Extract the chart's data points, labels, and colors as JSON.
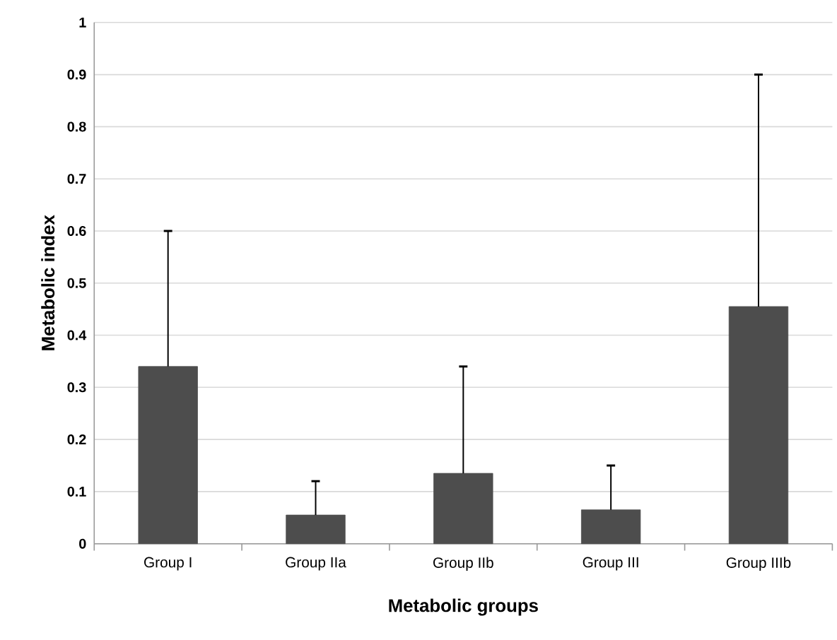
{
  "chart_data": {
    "type": "bar",
    "xlabel": "Metabolic groups",
    "ylabel": "Metabolic index",
    "categories": [
      "Group I",
      "Group IIa",
      "Group IIb",
      "Group III",
      "Group IIIb"
    ],
    "values": [
      0.34,
      0.055,
      0.135,
      0.065,
      0.455
    ],
    "errors": [
      [
        0.34,
        0.6
      ],
      [
        0.055,
        0.12
      ],
      [
        0.135,
        0.34
      ],
      [
        0.065,
        0.15
      ],
      [
        0.455,
        0.9
      ]
    ],
    "color": "#4d4d4d",
    "ylim": [
      0,
      1
    ],
    "yticks": [
      0,
      0.1,
      0.2,
      0.3,
      0.4,
      0.5,
      0.6,
      0.7,
      0.8,
      0.9,
      1
    ],
    "grid": "y"
  }
}
